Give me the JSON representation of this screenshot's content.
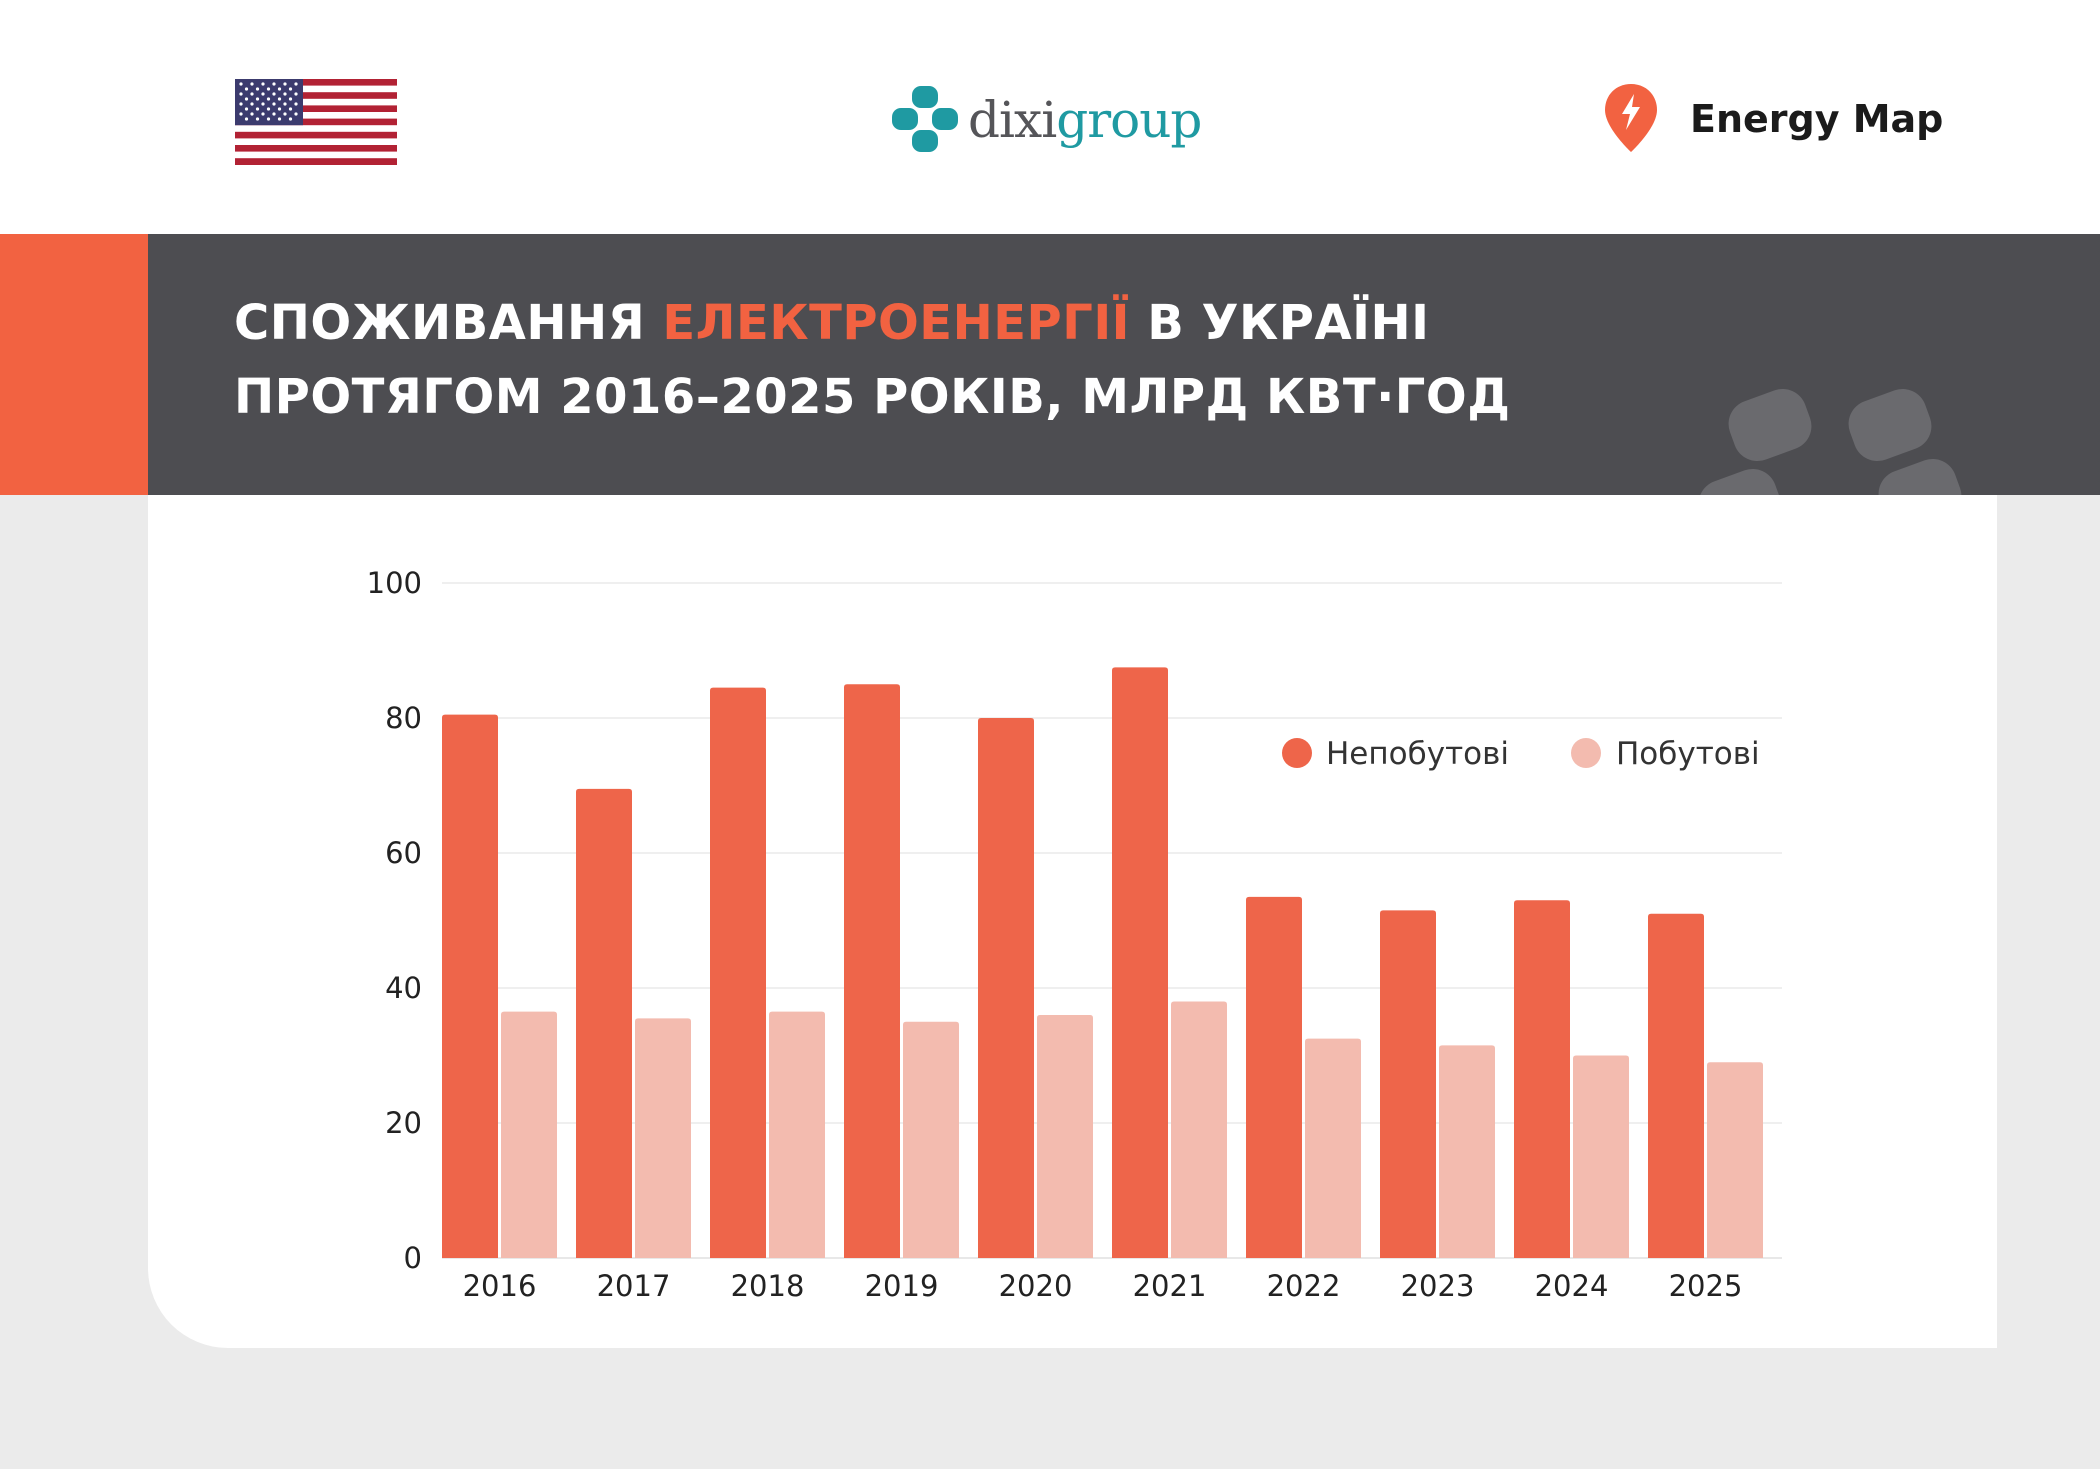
{
  "header": {
    "flag": {
      "icon": "us-flag-icon"
    },
    "dixi": {
      "part1": "dixi",
      "part2": "group",
      "icon": "dixigroup-logo-icon"
    },
    "energy_map": {
      "label": "Energy Map",
      "icon": "lightning-pin-icon"
    }
  },
  "title": {
    "prefix": "СПОЖИВАННЯ ",
    "highlight": "ЕЛЕКТРОЕНЕРГІЇ",
    "suffix": " В УКРАЇНІ ПРОТЯГОМ 2016–2025 РОКІВ, МЛРД КВТ·ГОД"
  },
  "colors": {
    "accent": "#f26241",
    "band": "#4d4d51",
    "series_1": "#ee654a",
    "series_2": "#f3bbaf",
    "grid": "#eaeaea"
  },
  "chart_data": {
    "type": "bar",
    "categories": [
      "2016",
      "2017",
      "2018",
      "2019",
      "2020",
      "2021",
      "2022",
      "2023",
      "2024",
      "2025"
    ],
    "series": [
      {
        "name": "Непобутові",
        "values": [
          80.5,
          69.5,
          84.5,
          85.0,
          80.0,
          87.5,
          53.5,
          51.5,
          53.0,
          51.0
        ],
        "color": "#ee654a"
      },
      {
        "name": "Побутові",
        "values": [
          36.5,
          35.5,
          36.5,
          35.0,
          36.0,
          38.0,
          32.5,
          31.5,
          30.0,
          29.0
        ],
        "color": "#f3bbaf"
      }
    ],
    "yticks": [
      0,
      20,
      40,
      60,
      80,
      100
    ],
    "ylim": [
      0,
      100
    ],
    "xlabel": "",
    "ylabel": "",
    "grid": true,
    "legend_position": "top-right"
  }
}
